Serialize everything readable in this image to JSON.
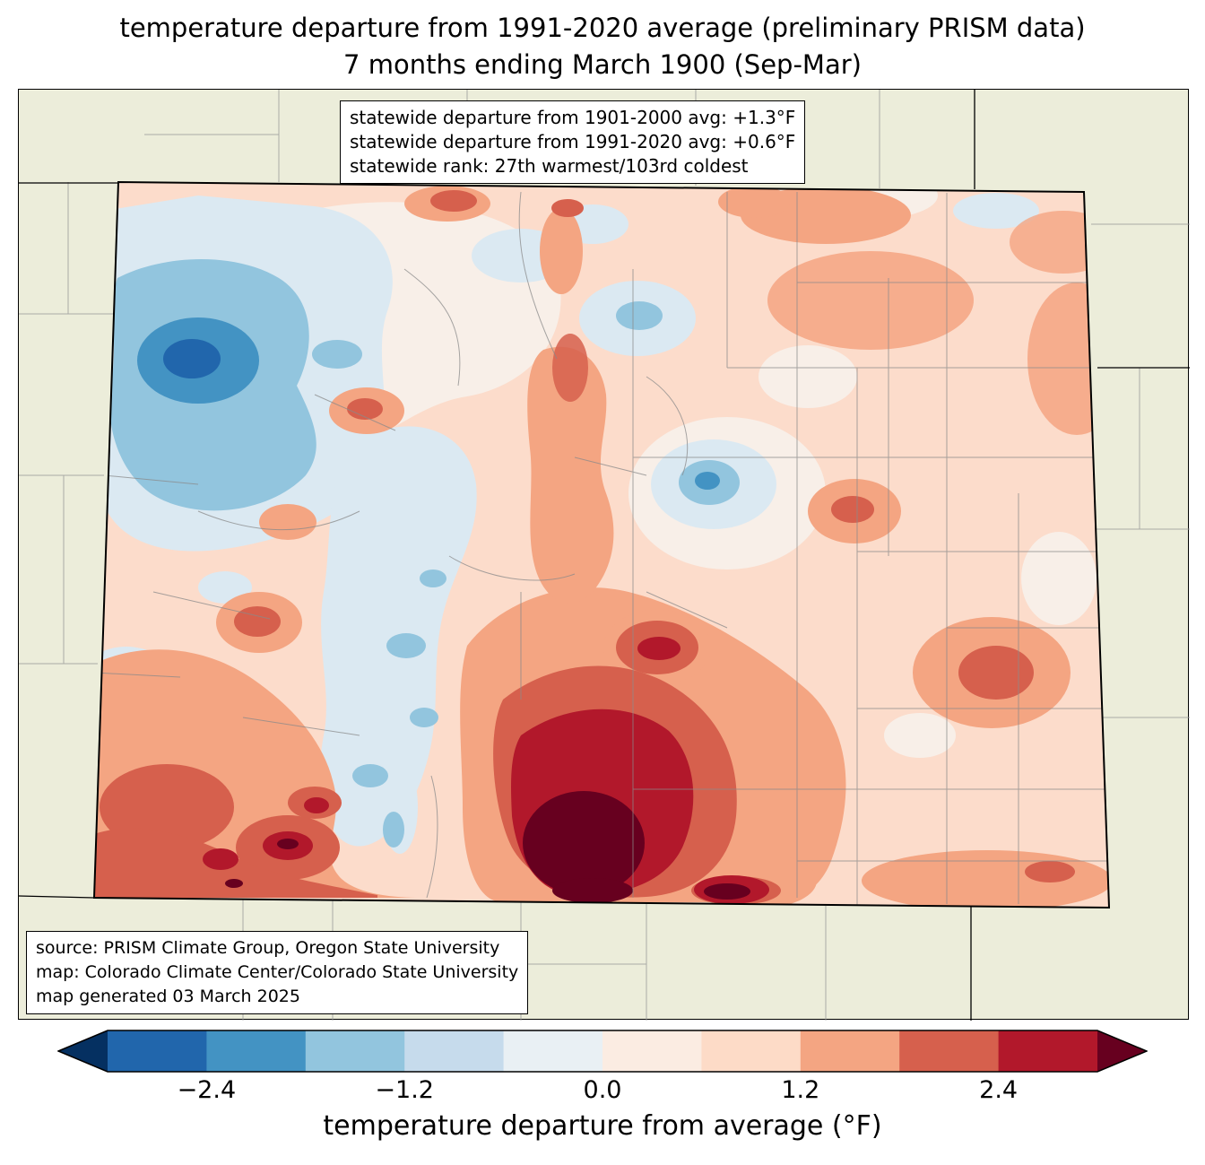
{
  "title": {
    "line1": "temperature departure from 1991-2020 average (preliminary PRISM data)",
    "line2": "7 months ending March 1900 (Sep-Mar)"
  },
  "stats_box": {
    "lines": [
      "statewide departure from 1901-2000 avg: +1.3°F",
      "statewide departure from 1991-2020 avg: +0.6°F",
      "statewide rank: 27th warmest/103rd coldest"
    ]
  },
  "source_box": {
    "lines": [
      "source: PRISM Climate Group, Oregon State University",
      "map: Colorado Climate Center/Colorado State University",
      "map generated 03 March 2025"
    ]
  },
  "colorbar": {
    "label": "temperature departure from average (°F)",
    "ticks": [
      "−2.4",
      "−1.2",
      "0.0",
      "1.2",
      "2.4"
    ],
    "range": [
      -3.0,
      3.0
    ],
    "segment_colors": [
      "#2166ac",
      "#4393c3",
      "#92c5de",
      "#c6dbec",
      "#e9f0f4",
      "#fbece2",
      "#fddbc7",
      "#f4a582",
      "#d6604d",
      "#b2182b"
    ],
    "arrow_low_color": "#053061",
    "arrow_high_color": "#67001f"
  },
  "chart_data": {
    "type": "heatmap",
    "region": "Colorado",
    "title": "temperature departure from 1991-2020 average (preliminary PRISM data) — 7 months ending March 1900 (Sep-Mar)",
    "colorbar_label": "temperature departure from average (°F)",
    "colorbar_ticks": [
      -2.4,
      -1.2,
      0.0,
      1.2,
      2.4
    ],
    "colorbar_range": [
      -3.0,
      3.0
    ],
    "statewide_departure_from_1901_2000_avg_F": 1.3,
    "statewide_departure_from_1991_2020_avg_F": 0.6,
    "statewide_rank": "27th warmest/103rd coldest"
  }
}
